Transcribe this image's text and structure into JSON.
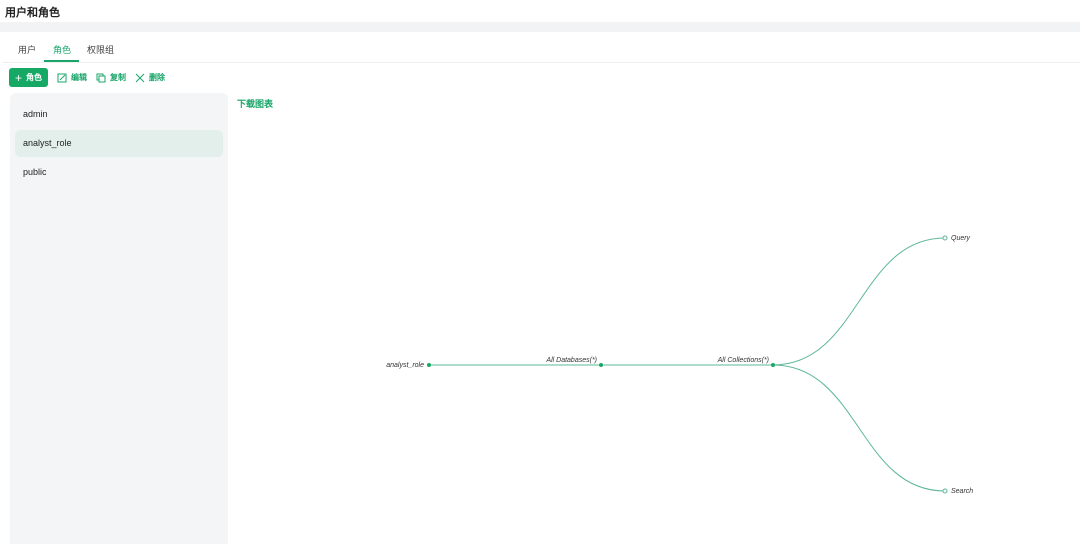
{
  "header": {
    "title": "用户和角色"
  },
  "tabs": [
    {
      "label": "用户"
    },
    {
      "label": "角色",
      "active": true
    },
    {
      "label": "权限组"
    }
  ],
  "toolbar": {
    "add": "角色",
    "edit": "编辑",
    "copy": "复制",
    "delete": "删除"
  },
  "roles": [
    {
      "name": "admin"
    },
    {
      "name": "analyst_role",
      "selected": true
    },
    {
      "name": "public"
    }
  ],
  "main": {
    "download": "下载图表"
  },
  "tree": {
    "root": "analyst_role",
    "database": "All Databases(*)",
    "collection": "All Collections(*)",
    "privileges": [
      "Query",
      "Search"
    ]
  },
  "colors": {
    "accent": "#16a865",
    "line": "#5cb896"
  }
}
